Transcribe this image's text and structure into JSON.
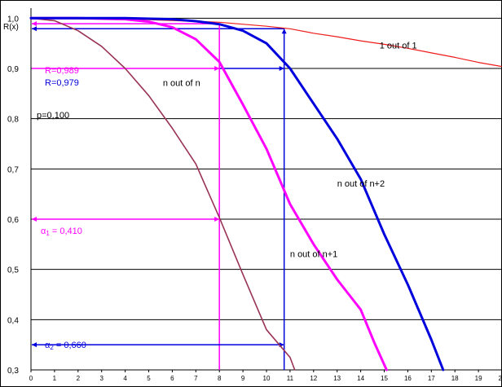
{
  "chart_data": {
    "type": "line",
    "ylabel": "R(x)",
    "xlim": [
      0,
      20
    ],
    "ylim": [
      0.3,
      1.02
    ],
    "x_ticks": [
      "0",
      "1",
      "2",
      "3",
      "4",
      "5",
      "6",
      "7",
      "8",
      "9",
      "10",
      "11",
      "12",
      "13",
      "14",
      "15",
      "16",
      "17",
      "18",
      "19",
      "20"
    ],
    "y_ticks": [
      {
        "value": 0.3,
        "label": "0,3"
      },
      {
        "value": 0.4,
        "label": "0,4"
      },
      {
        "value": 0.5,
        "label": "0,5"
      },
      {
        "value": 0.6,
        "label": "0,6"
      },
      {
        "value": 0.7,
        "label": "0,7"
      },
      {
        "value": 0.8,
        "label": "0,8"
      },
      {
        "value": 0.9,
        "label": "0,9"
      },
      {
        "value": 1.0,
        "label": "1,0"
      }
    ],
    "grid": "horizontal",
    "series": [
      {
        "name": "1 out of 1",
        "color": "#ee1c1c",
        "x": [
          0,
          5,
          8,
          10,
          11,
          12,
          13,
          14,
          15,
          16,
          17,
          18,
          19,
          20
        ],
        "y": [
          1.0,
          0.997,
          0.992,
          0.984,
          0.979,
          0.97,
          0.963,
          0.955,
          0.948,
          0.94,
          0.931,
          0.922,
          0.912,
          0.904
        ]
      },
      {
        "name": "n out of n",
        "color": "#993355",
        "x": [
          0,
          1,
          2,
          3,
          4,
          5,
          6,
          7,
          8,
          9,
          10,
          11,
          11.2
        ],
        "y": [
          1.0,
          0.995,
          0.975,
          0.944,
          0.9,
          0.846,
          0.781,
          0.71,
          0.603,
          0.49,
          0.38,
          0.325,
          0.3
        ]
      },
      {
        "name": "n out of n+1",
        "color": "#ff00ff",
        "x": [
          0,
          2,
          4,
          5,
          6,
          7,
          8,
          9,
          10,
          11,
          12,
          13,
          14,
          14.6,
          15.1
        ],
        "y": [
          1.0,
          1.0,
          0.998,
          0.993,
          0.982,
          0.958,
          0.913,
          0.828,
          0.74,
          0.63,
          0.55,
          0.48,
          0.42,
          0.352,
          0.3
        ]
      },
      {
        "name": "n out of n+2",
        "color": "#0000dd",
        "x": [
          0,
          4,
          6,
          7,
          8,
          9,
          10,
          11,
          12,
          13,
          14,
          15,
          16,
          17,
          17.5
        ],
        "y": [
          1.0,
          1.0,
          0.998,
          0.994,
          0.988,
          0.975,
          0.95,
          0.9,
          0.83,
          0.76,
          0.68,
          0.57,
          0.47,
          0.36,
          0.3
        ]
      }
    ],
    "series_labels": [
      {
        "text": "1 out of 1",
        "x": 14.8,
        "y": 0.94
      },
      {
        "text": "n out of n",
        "x": 5.6,
        "y": 0.865
      },
      {
        "text": "n out of n+1",
        "x": 11.0,
        "y": 0.525
      },
      {
        "text": "n out of n+2",
        "x": 13.0,
        "y": 0.665
      }
    ],
    "annotations": {
      "r1_label": "R=0,989",
      "r1_value": 0.989,
      "r2_label": "R=0,979",
      "r2_value": 0.979,
      "p_label": "p=0,100",
      "p_value": 0.9,
      "alpha1_symbol": "α",
      "alpha1_sub": "1",
      "alpha1_text": " = 0,410",
      "alpha1_x": 8.0,
      "alpha1_level": 0.6,
      "alpha2_symbol": "α",
      "alpha2_sub": "2",
      "alpha2_text": " = 0,660",
      "alpha2_x": 10.75,
      "alpha2_level": 0.35,
      "magenta": "#ff00ff",
      "blue": "#0000dd"
    }
  }
}
